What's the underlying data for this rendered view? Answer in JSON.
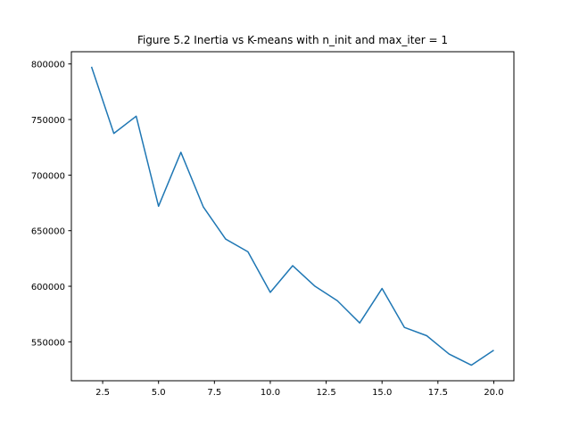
{
  "chart_data": {
    "type": "line",
    "title": "Figure 5.2 Inertia vs K-means with n_init and max_iter = 1",
    "xlabel": "",
    "ylabel": "",
    "xlim": [
      1.1,
      20.9
    ],
    "ylim": [
      515000,
      811000
    ],
    "x_ticks": [
      2.5,
      5.0,
      7.5,
      10.0,
      12.5,
      15.0,
      17.5,
      20.0
    ],
    "x_tick_labels": [
      "2.5",
      "5.0",
      "7.5",
      "10.0",
      "12.5",
      "15.0",
      "17.5",
      "20.0"
    ],
    "y_ticks": [
      550000,
      600000,
      650000,
      700000,
      750000,
      800000
    ],
    "y_tick_labels": [
      "550000",
      "600000",
      "650000",
      "700000",
      "750000",
      "800000"
    ],
    "grid": false,
    "series_color": "#1f77b4",
    "x": [
      2,
      3,
      4,
      5,
      6,
      7,
      8,
      9,
      10,
      11,
      12,
      13,
      14,
      15,
      16,
      17,
      18,
      19,
      20
    ],
    "y": [
      797500,
      737500,
      753000,
      672000,
      720500,
      671500,
      642500,
      631000,
      594500,
      618500,
      600000,
      587000,
      567000,
      598000,
      563000,
      555500,
      539000,
      529000,
      542500
    ]
  }
}
